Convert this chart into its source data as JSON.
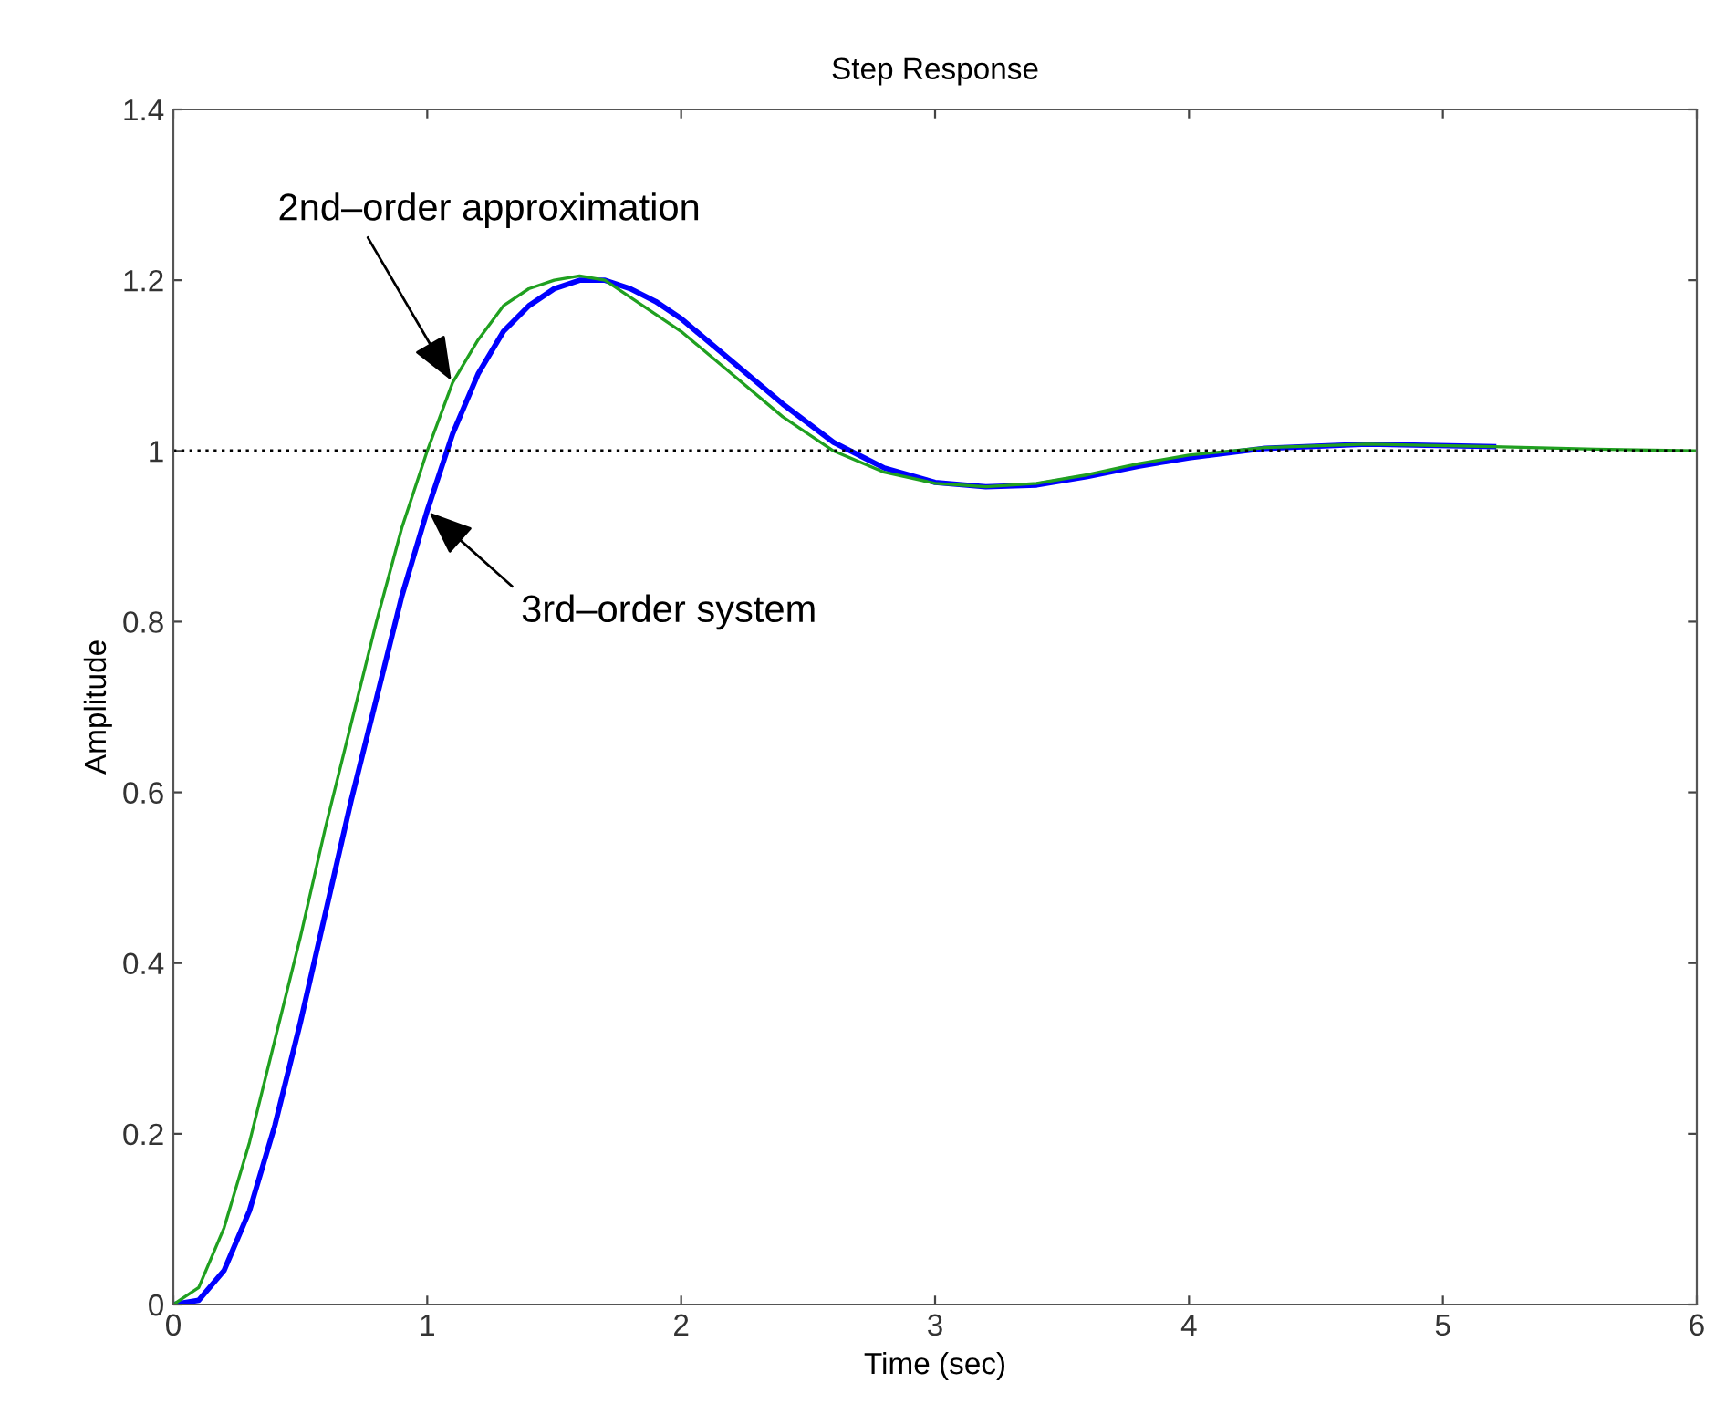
{
  "chart_data": {
    "type": "line",
    "title": "Step Response",
    "xlabel": "Time (sec)",
    "ylabel": "Amplitude",
    "x": [
      0,
      0.1,
      0.2,
      0.3,
      0.4,
      0.5,
      0.6,
      0.7,
      0.8,
      0.9,
      1.0,
      1.1,
      1.2,
      1.3,
      1.4,
      1.5,
      1.6,
      1.7,
      1.8,
      1.9,
      2.0,
      2.2,
      2.4,
      2.6,
      2.8,
      3.0,
      3.2,
      3.4,
      3.6,
      3.8,
      4.0,
      4.3,
      4.7,
      5.2,
      5.6,
      6.0
    ],
    "series": [
      {
        "color": "#0000ff",
        "values": [
          0,
          0.005,
          0.04,
          0.11,
          0.21,
          0.33,
          0.46,
          0.59,
          0.71,
          0.83,
          0.93,
          1.02,
          1.09,
          1.14,
          1.17,
          1.19,
          1.2,
          1.2,
          1.19,
          1.175,
          1.155,
          1.105,
          1.055,
          1.01,
          0.98,
          0.963,
          0.958,
          0.96,
          0.97,
          0.982,
          0.992,
          1.003,
          1.008,
          1.005,
          null,
          null
        ]
      },
      {
        "color": "#20a020",
        "values": [
          0,
          0.02,
          0.09,
          0.19,
          0.31,
          0.43,
          0.56,
          0.68,
          0.8,
          0.91,
          1.0,
          1.08,
          1.13,
          1.17,
          1.19,
          1.2,
          1.205,
          1.2,
          1.18,
          1.16,
          1.14,
          1.09,
          1.04,
          1.0,
          0.975,
          0.962,
          0.958,
          0.962,
          0.972,
          0.985,
          0.995,
          1.004,
          1.008,
          1.005,
          1.002,
          1.0
        ]
      }
    ],
    "annotations": [
      {
        "text": "2nd–order approximation",
        "x": 1.1,
        "y": 1.08
      },
      {
        "text": "3rd–order system",
        "x": 1.0,
        "y": 0.93
      }
    ],
    "ref_lines": [
      {
        "axis": "y",
        "value": 1,
        "color": "#000000",
        "line_style": "dotted"
      }
    ],
    "xlim": [
      0,
      6
    ],
    "ylim": [
      0,
      1.4
    ],
    "xticks": [
      0,
      1,
      2,
      3,
      4,
      5,
      6
    ],
    "yticks": [
      0,
      0.2,
      0.4,
      0.6,
      0.8,
      1,
      1.2,
      1.4
    ],
    "marker": "none",
    "line_style": "solid",
    "grid": false,
    "legend": false
  }
}
